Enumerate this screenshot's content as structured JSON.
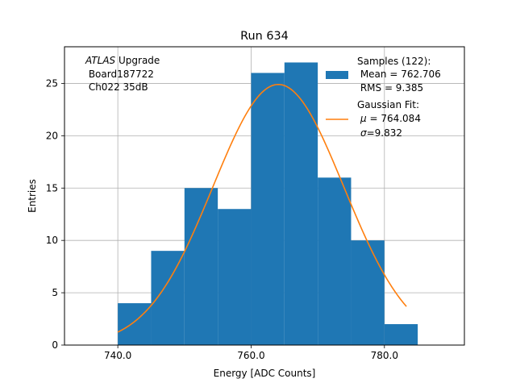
{
  "chart_data": {
    "type": "bar",
    "title": "Run 634",
    "xlabel": "Energy [ADC Counts]",
    "ylabel": "Entries",
    "xlim": [
      732,
      792
    ],
    "ylim": [
      0,
      28.5
    ],
    "grid": true,
    "x_ticks": [
      740,
      760,
      780
    ],
    "x_tick_labels": [
      "740.0",
      "760.0",
      "780.0"
    ],
    "y_ticks": [
      0,
      5,
      10,
      15,
      20,
      25
    ],
    "y_tick_labels": [
      "0",
      "5",
      "10",
      "15",
      "20",
      "25"
    ],
    "annotation": {
      "italic": "ATLAS",
      "line1_rest": " Upgrade",
      "line2": " Board187722",
      "line3": " Ch022 35dB"
    },
    "histogram": {
      "name": "Samples (122):",
      "color": "#1f77b4",
      "bin_edges": [
        740,
        745,
        750,
        755,
        760,
        765,
        770,
        775,
        780,
        785
      ],
      "counts": [
        4,
        9,
        15,
        13,
        26,
        27,
        16,
        10,
        2
      ]
    },
    "fit": {
      "name": "Gaussian Fit:",
      "color": "#ff7f0e",
      "amplitude": 24.9,
      "mu": 764.084,
      "sigma": 9.832,
      "x_start": 740,
      "x_end": 783.3
    },
    "legend": {
      "location": "upper right",
      "hist_lines": [
        "Samples (122):",
        " Mean = 762.706",
        " RMS = 9.385"
      ],
      "fit_title": "Gaussian Fit:",
      "fit_mu_symbol": "μ",
      "fit_mu_value": " = 764.084",
      "fit_sigma_symbol": "σ",
      "fit_sigma_value": "=9.832"
    }
  }
}
